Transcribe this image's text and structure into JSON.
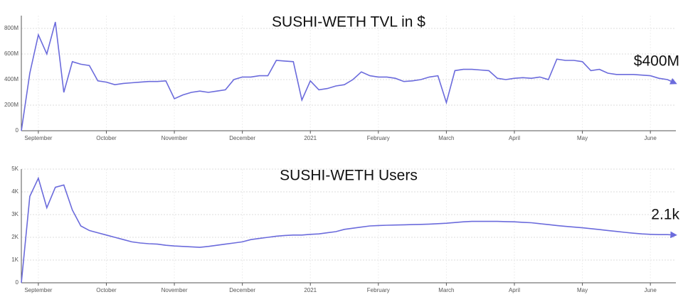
{
  "chart_data": [
    {
      "type": "line",
      "title": "SUSHI-WETH TVL in $",
      "annotation": "$400M",
      "color": "#6b6bdc",
      "grid": true,
      "categories": [
        null,
        null,
        "September",
        null,
        null,
        null,
        null,
        null,
        null,
        null,
        "October",
        null,
        null,
        null,
        null,
        null,
        null,
        null,
        "November",
        null,
        null,
        null,
        null,
        null,
        null,
        null,
        "December",
        null,
        null,
        null,
        null,
        null,
        null,
        null,
        "2021",
        null,
        null,
        null,
        null,
        null,
        null,
        null,
        "February",
        null,
        null,
        null,
        null,
        null,
        null,
        null,
        "March",
        null,
        null,
        null,
        null,
        null,
        null,
        null,
        "April",
        null,
        null,
        null,
        null,
        null,
        null,
        null,
        "May",
        null,
        null,
        null,
        null,
        null,
        null,
        null,
        "June",
        null,
        null,
        null
      ],
      "series": [
        {
          "name": "TVL",
          "color": "#6b6bdc",
          "values": [
            0,
            450,
            750,
            600,
            850,
            300,
            540,
            520,
            510,
            390,
            380,
            360,
            370,
            375,
            380,
            385,
            385,
            390,
            250,
            280,
            300,
            310,
            300,
            310,
            320,
            400,
            420,
            420,
            430,
            430,
            550,
            545,
            540,
            240,
            390,
            320,
            330,
            350,
            360,
            400,
            460,
            430,
            420,
            420,
            410,
            385,
            390,
            400,
            420,
            430,
            220,
            470,
            480,
            480,
            475,
            470,
            410,
            400,
            410,
            415,
            410,
            420,
            400,
            560,
            550,
            550,
            540,
            470,
            480,
            450,
            440,
            440,
            440,
            435,
            430,
            410,
            400,
            370
          ]
        }
      ],
      "ylim": [
        0,
        900
      ],
      "yticks": [
        0,
        {
          "value": 200,
          "label": "200M"
        },
        {
          "value": 400,
          "label": "400M"
        },
        {
          "value": 600,
          "label": "600M"
        },
        {
          "value": 800,
          "label": "800M"
        }
      ]
    },
    {
      "type": "line",
      "title": "SUSHI-WETH Users",
      "annotation": "2.1k",
      "color": "#6b6bdc",
      "grid": true,
      "categories": [
        null,
        null,
        "September",
        null,
        null,
        null,
        null,
        null,
        null,
        null,
        "October",
        null,
        null,
        null,
        null,
        null,
        null,
        null,
        "November",
        null,
        null,
        null,
        null,
        null,
        null,
        null,
        "December",
        null,
        null,
        null,
        null,
        null,
        null,
        null,
        "2021",
        null,
        null,
        null,
        null,
        null,
        null,
        null,
        "February",
        null,
        null,
        null,
        null,
        null,
        null,
        null,
        "March",
        null,
        null,
        null,
        null,
        null,
        null,
        null,
        "April",
        null,
        null,
        null,
        null,
        null,
        null,
        null,
        "May",
        null,
        null,
        null,
        null,
        null,
        null,
        null,
        "June",
        null,
        null,
        null
      ],
      "series": [
        {
          "name": "Users",
          "color": "#6b6bdc",
          "values": [
            0,
            3800,
            4600,
            3300,
            4200,
            4300,
            3200,
            2500,
            2300,
            2200,
            2100,
            2000,
            1900,
            1800,
            1750,
            1720,
            1700,
            1650,
            1620,
            1600,
            1580,
            1560,
            1600,
            1650,
            1700,
            1750,
            1800,
            1900,
            1950,
            2000,
            2050,
            2080,
            2100,
            2100,
            2130,
            2150,
            2200,
            2250,
            2350,
            2400,
            2450,
            2500,
            2520,
            2530,
            2540,
            2550,
            2560,
            2570,
            2580,
            2600,
            2620,
            2650,
            2680,
            2700,
            2700,
            2700,
            2700,
            2690,
            2680,
            2660,
            2640,
            2600,
            2560,
            2520,
            2480,
            2450,
            2420,
            2380,
            2340,
            2300,
            2260,
            2220,
            2180,
            2150,
            2130,
            2120,
            2120,
            2100
          ]
        }
      ],
      "ylim": [
        0,
        5000
      ],
      "yticks": [
        0,
        {
          "value": 1000,
          "label": "1K"
        },
        {
          "value": 2000,
          "label": "2K"
        },
        {
          "value": 3000,
          "label": "3K"
        },
        {
          "value": 4000,
          "label": "4K"
        },
        {
          "value": 5000,
          "label": "5K"
        }
      ]
    }
  ]
}
